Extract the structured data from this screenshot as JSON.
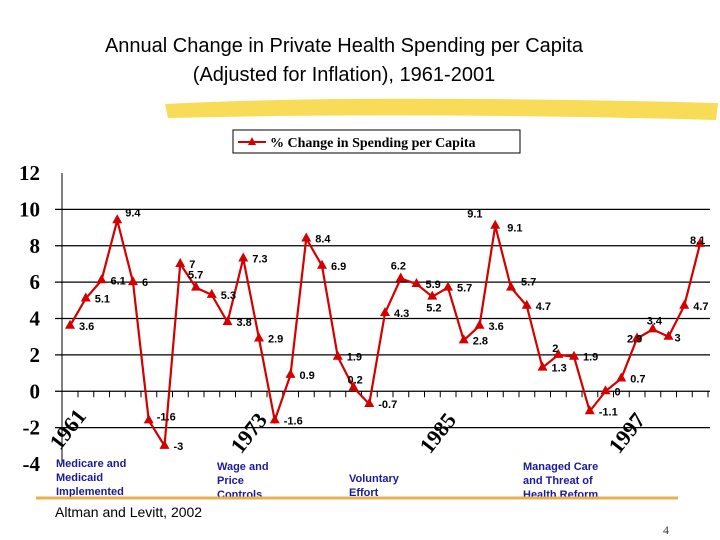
{
  "title_line1": "Annual Change in Private Health Spending per Capita",
  "title_line2": "(Adjusted for Inflation), 1961-2001",
  "source": "Altman and Levitt, 2002",
  "page_number": "4",
  "colors": {
    "series": "#d40000",
    "accent_rule": "#e8b050",
    "highlight": "#f5d020",
    "note_text": "#1a1a9a"
  },
  "annotations": [
    {
      "year": 1961,
      "lines": [
        "Medicare and",
        "Medicaid",
        "Implemented"
      ]
    },
    {
      "year": 1973,
      "lines": [
        "Wage and",
        "Price",
        "Controls"
      ]
    },
    {
      "year": 1985,
      "lines": [
        "Voluntary",
        "Effort"
      ]
    },
    {
      "year": 1997,
      "lines": [
        "Managed Care",
        "and Threat of",
        "Health Reform"
      ]
    }
  ],
  "chart_data": {
    "type": "line",
    "title": "Annual Change in Private Health Spending per Capita (Adjusted for Inflation), 1961-2001",
    "xlabel": "",
    "ylabel": "",
    "ylim": [
      -4,
      12
    ],
    "yticks": [
      "12",
      "10",
      "8",
      "6",
      "4",
      "2",
      "0",
      "-2",
      "-4"
    ],
    "xticks": [
      "1961",
      "1973",
      "1985",
      "1997"
    ],
    "grid": true,
    "legend": "top-right",
    "x": [
      1961,
      1962,
      1963,
      1964,
      1965,
      1966,
      1967,
      1968,
      1969,
      1970,
      1971,
      1972,
      1973,
      1974,
      1975,
      1976,
      1977,
      1978,
      1979,
      1980,
      1981,
      1982,
      1983,
      1984,
      1985,
      1986,
      1987,
      1988,
      1989,
      1990,
      1991,
      1992,
      1993,
      1994,
      1995,
      1996,
      1997,
      1998,
      1999,
      2000,
      2001
    ],
    "series": [
      {
        "name": "% Change in Spending per Capita",
        "values": [
          3.6,
          5.1,
          6.1,
          9.4,
          6,
          -1.6,
          -3,
          7,
          5.7,
          5.3,
          3.8,
          7.3,
          2.9,
          -1.6,
          0.9,
          8.4,
          6.9,
          1.9,
          0.2,
          -0.7,
          4.3,
          6.2,
          5.9,
          5.2,
          5.7,
          2.8,
          3.6,
          9.1,
          5.7,
          4.7,
          1.3,
          2,
          1.9,
          -1.1,
          0,
          0.7,
          2.9,
          3.4,
          3,
          4.7,
          8.1
        ]
      }
    ],
    "extra_labels": [
      "9.1"
    ]
  }
}
